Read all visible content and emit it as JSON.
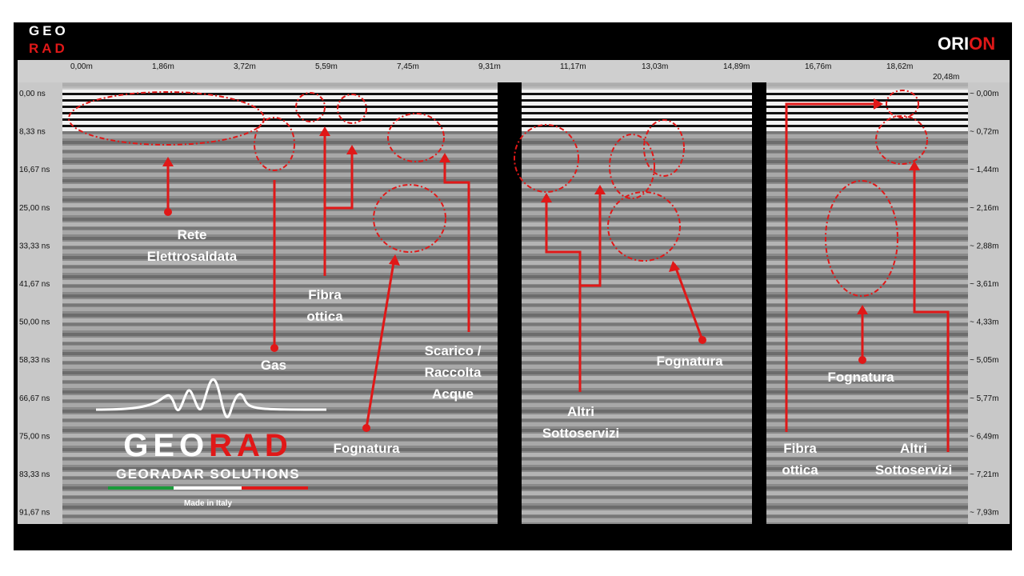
{
  "header": {
    "logo": [
      "GEO",
      "RAD"
    ],
    "brand": [
      "ORI",
      "ON"
    ]
  },
  "distance_axis": [
    "0,00m",
    "1,86m",
    "3,72m",
    "5,59m",
    "7,45m",
    "9,31m",
    "11,17m",
    "13,03m",
    "14,89m",
    "16,76m",
    "18,62m",
    "20,48m"
  ],
  "time_axis": [
    "0,00 ns",
    "8,33 ns",
    "16,67 ns",
    "25,00 ns",
    "33,33 ns",
    "41,67 ns",
    "50,00 ns",
    "58,33 ns",
    "66,67 ns",
    "75,00 ns",
    "83,33 ns",
    "91,67 ns"
  ],
  "depth_axis": [
    "~ 0,00m",
    "~ 0,72m",
    "~ 1,44m",
    "~ 2,16m",
    "~ 2,88m",
    "~ 3,61m",
    "~ 4,33m",
    "~ 5,05m",
    "~ 5,77m",
    "~ 6,49m",
    "~ 7,21m",
    "~ 7,93m"
  ],
  "annotations": [
    {
      "lines": [
        "Rete",
        "Elettrosaldata"
      ]
    },
    {
      "lines": [
        "Gas"
      ]
    },
    {
      "lines": [
        "Fibra",
        "ottica"
      ]
    },
    {
      "lines": [
        "Fognatura"
      ]
    },
    {
      "lines": [
        "Scarico /",
        "Raccolta",
        "Acque"
      ]
    },
    {
      "lines": [
        "Altri",
        "Sottoservizi"
      ]
    },
    {
      "lines": [
        "Fognatura"
      ]
    },
    {
      "lines": [
        "Fognatura"
      ]
    },
    {
      "lines": [
        "Fibra",
        "ottica"
      ]
    },
    {
      "lines": [
        "Altri",
        "Sottoservizi"
      ]
    }
  ],
  "watermark": {
    "name": [
      "GEO",
      "RAD"
    ],
    "tagline": "GEORADAR SOLUTIONS",
    "origin": "Made in Italy"
  }
}
